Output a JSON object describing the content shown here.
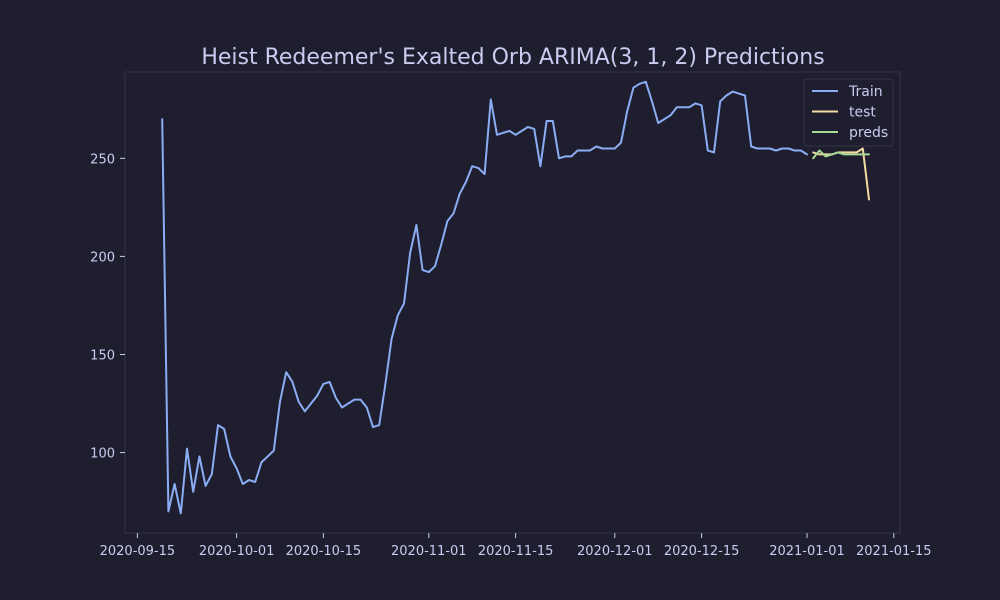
{
  "chart_data": {
    "type": "line",
    "title": "Heist Redeemer's Exalted Orb ARIMA(3, 1, 2) Predictions",
    "xlabel": "",
    "ylabel": "",
    "x_range": [
      "2020-09-13",
      "2021-01-16"
    ],
    "y_range": [
      59,
      294
    ],
    "x_ticks": [
      "2020-09-15",
      "2020-10-01",
      "2020-10-15",
      "2020-11-01",
      "2020-11-15",
      "2020-12-01",
      "2020-12-15",
      "2021-01-01",
      "2021-01-15"
    ],
    "y_ticks": [
      100,
      150,
      200,
      250
    ],
    "grid": false,
    "legend_position": "top-right",
    "colors": {
      "background": "#1f1e2e",
      "axes": "#35344a",
      "text": "#c9cbf0"
    },
    "series": [
      {
        "name": "Train",
        "color": "#8aadf4",
        "points": [
          [
            "2020-09-19",
            270
          ],
          [
            "2020-09-20",
            70
          ],
          [
            "2020-09-21",
            84
          ],
          [
            "2020-09-22",
            69
          ],
          [
            "2020-09-23",
            102
          ],
          [
            "2020-09-24",
            80
          ],
          [
            "2020-09-25",
            98
          ],
          [
            "2020-09-26",
            83
          ],
          [
            "2020-09-27",
            89
          ],
          [
            "2020-09-28",
            114
          ],
          [
            "2020-09-29",
            112
          ],
          [
            "2020-09-30",
            98
          ],
          [
            "2020-10-01",
            92
          ],
          [
            "2020-10-02",
            84
          ],
          [
            "2020-10-03",
            86
          ],
          [
            "2020-10-04",
            85
          ],
          [
            "2020-10-05",
            95
          ],
          [
            "2020-10-06",
            98
          ],
          [
            "2020-10-07",
            101
          ],
          [
            "2020-10-08",
            126
          ],
          [
            "2020-10-09",
            141
          ],
          [
            "2020-10-10",
            136
          ],
          [
            "2020-10-11",
            126
          ],
          [
            "2020-10-12",
            121
          ],
          [
            "2020-10-13",
            125
          ],
          [
            "2020-10-14",
            129
          ],
          [
            "2020-10-15",
            135
          ],
          [
            "2020-10-16",
            136
          ],
          [
            "2020-10-17",
            128
          ],
          [
            "2020-10-18",
            123
          ],
          [
            "2020-10-19",
            125
          ],
          [
            "2020-10-20",
            127
          ],
          [
            "2020-10-21",
            127
          ],
          [
            "2020-10-22",
            123
          ],
          [
            "2020-10-23",
            113
          ],
          [
            "2020-10-24",
            114
          ],
          [
            "2020-10-25",
            135
          ],
          [
            "2020-10-26",
            158
          ],
          [
            "2020-10-27",
            170
          ],
          [
            "2020-10-28",
            176
          ],
          [
            "2020-10-29",
            202
          ],
          [
            "2020-10-30",
            216
          ],
          [
            "2020-10-31",
            193
          ],
          [
            "2020-11-01",
            192
          ],
          [
            "2020-11-02",
            195
          ],
          [
            "2020-11-03",
            206
          ],
          [
            "2020-11-04",
            218
          ],
          [
            "2020-11-05",
            222
          ],
          [
            "2020-11-06",
            232
          ],
          [
            "2020-11-07",
            238
          ],
          [
            "2020-11-08",
            246
          ],
          [
            "2020-11-09",
            245
          ],
          [
            "2020-11-10",
            242
          ],
          [
            "2020-11-11",
            280
          ],
          [
            "2020-11-12",
            262
          ],
          [
            "2020-11-13",
            263
          ],
          [
            "2020-11-14",
            264
          ],
          [
            "2020-11-15",
            262
          ],
          [
            "2020-11-16",
            264
          ],
          [
            "2020-11-17",
            266
          ],
          [
            "2020-11-18",
            265
          ],
          [
            "2020-11-19",
            246
          ],
          [
            "2020-11-20",
            269
          ],
          [
            "2020-11-21",
            269
          ],
          [
            "2020-11-22",
            250
          ],
          [
            "2020-11-23",
            251
          ],
          [
            "2020-11-24",
            251
          ],
          [
            "2020-11-25",
            254
          ],
          [
            "2020-11-26",
            254
          ],
          [
            "2020-11-27",
            254
          ],
          [
            "2020-11-28",
            256
          ],
          [
            "2020-11-29",
            255
          ],
          [
            "2020-11-30",
            255
          ],
          [
            "2020-12-01",
            255
          ],
          [
            "2020-12-02",
            258
          ],
          [
            "2020-12-03",
            274
          ],
          [
            "2020-12-04",
            286
          ],
          [
            "2020-12-05",
            288
          ],
          [
            "2020-12-06",
            289
          ],
          [
            "2020-12-07",
            279
          ],
          [
            "2020-12-08",
            268
          ],
          [
            "2020-12-09",
            270
          ],
          [
            "2020-12-10",
            272
          ],
          [
            "2020-12-11",
            276
          ],
          [
            "2020-12-12",
            276
          ],
          [
            "2020-12-13",
            276
          ],
          [
            "2020-12-14",
            278
          ],
          [
            "2020-12-15",
            277
          ],
          [
            "2020-12-16",
            254
          ],
          [
            "2020-12-17",
            253
          ],
          [
            "2020-12-18",
            279
          ],
          [
            "2020-12-19",
            282
          ],
          [
            "2020-12-20",
            284
          ],
          [
            "2020-12-21",
            283
          ],
          [
            "2020-12-22",
            282
          ],
          [
            "2020-12-23",
            256
          ],
          [
            "2020-12-24",
            255
          ],
          [
            "2020-12-25",
            255
          ],
          [
            "2020-12-26",
            255
          ],
          [
            "2020-12-27",
            254
          ],
          [
            "2020-12-28",
            255
          ],
          [
            "2020-12-29",
            255
          ],
          [
            "2020-12-30",
            254
          ],
          [
            "2020-12-31",
            254
          ],
          [
            "2021-01-01",
            252
          ]
        ]
      },
      {
        "name": "test",
        "color": "#f3d9a4",
        "points": [
          [
            "2021-01-02",
            253
          ],
          [
            "2021-01-03",
            252
          ],
          [
            "2021-01-04",
            252
          ],
          [
            "2021-01-05",
            252
          ],
          [
            "2021-01-06",
            253
          ],
          [
            "2021-01-07",
            253
          ],
          [
            "2021-01-08",
            253
          ],
          [
            "2021-01-09",
            253
          ],
          [
            "2021-01-10",
            255
          ],
          [
            "2021-01-11",
            229
          ]
        ]
      },
      {
        "name": "preds",
        "color": "#a6da95",
        "points": [
          [
            "2021-01-02",
            250
          ],
          [
            "2021-01-03",
            254
          ],
          [
            "2021-01-04",
            251
          ],
          [
            "2021-01-05",
            252
          ],
          [
            "2021-01-06",
            253
          ],
          [
            "2021-01-07",
            252
          ],
          [
            "2021-01-08",
            252
          ],
          [
            "2021-01-09",
            252
          ],
          [
            "2021-01-10",
            252
          ],
          [
            "2021-01-11",
            252
          ]
        ]
      }
    ]
  }
}
